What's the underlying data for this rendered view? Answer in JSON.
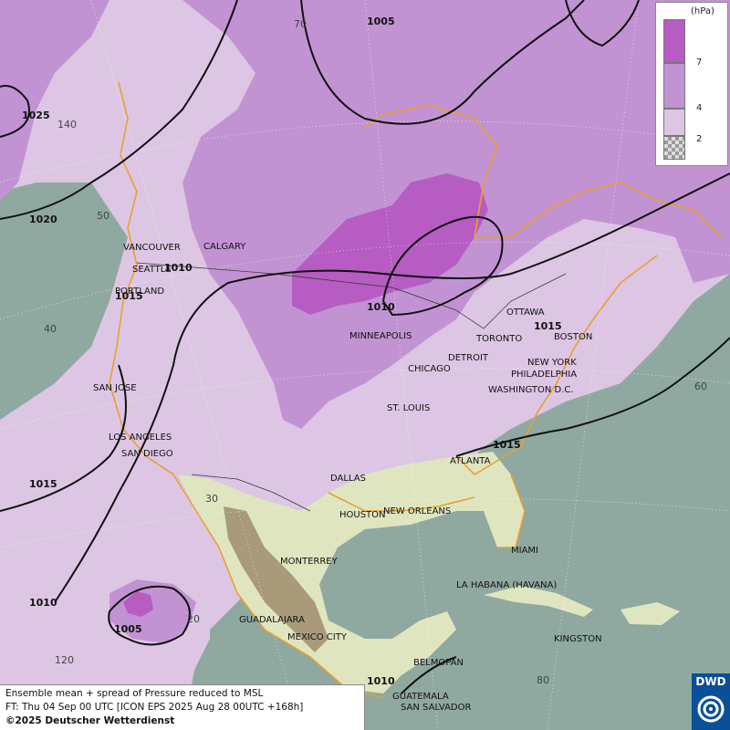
{
  "colors": {
    "ocean": "#8fa9a0",
    "shade_low": "#ddc6e4",
    "shade_mid": "#c293d3",
    "shade_high": "#b65cc3",
    "coast": "#e8a032",
    "isobar": "#111111"
  },
  "legend": {
    "unit": "(hPa)",
    "ticks": [
      "7",
      "4",
      "2"
    ]
  },
  "isobar_labels": [
    "1005",
    "1025",
    "1020",
    "1010",
    "1010",
    "1015",
    "1015",
    "1015",
    "1015",
    "1010",
    "1005",
    "1010"
  ],
  "grid_labels": [
    "70",
    "140",
    "50",
    "40",
    "60",
    "30",
    "20",
    "120",
    "80"
  ],
  "cities": [
    "VANCOUVER",
    "CALGARY",
    "SEATTLE",
    "PORTLAND",
    "MINNEAPOLIS",
    "OTTAWA",
    "TORONTO",
    "BOSTON",
    "DETROIT",
    "NEW YORK",
    "PHILADELPHIA",
    "CHICAGO",
    "WASHINGTON D.C.",
    "SAN JOSE",
    "ST. LOUIS",
    "LOS ANGELES",
    "SAN DIEGO",
    "ATLANTA",
    "DALLAS",
    "HOUSTON",
    "NEW ORLEANS",
    "MIAMI",
    "MONTERREY",
    "LA HABANA (HAVANA)",
    "GUADALAJARA",
    "MEXICO CITY",
    "KINGSTON",
    "BELMOPAN",
    "GUATEMALA",
    "SAN SALVADOR"
  ],
  "info": {
    "line1": "Ensemble mean + spread of Pressure reduced to MSL",
    "line2": "FT: Thu 04 Sep 00 UTC [ICON EPS 2025 Aug 28 00UTC +168h]",
    "line3": "©2025 Deutscher Wetterdienst"
  },
  "logo": {
    "text": "DWD",
    "icon": "dwd-swirl-icon"
  }
}
